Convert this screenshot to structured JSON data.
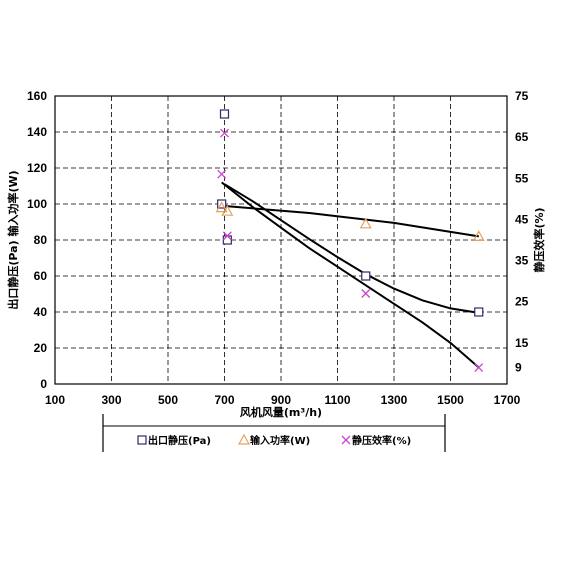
{
  "chart_data": {
    "type": "scatter",
    "xlabel": "风机风量(m³/h)",
    "ylabel_left": "出口静压(Pa) 输入功率(W)",
    "ylabel_right": "静压效率(%)",
    "x_ticks": [
      100,
      300,
      500,
      700,
      900,
      1100,
      1300,
      1500,
      1700
    ],
    "y_left_ticks": [
      0,
      20,
      40,
      60,
      80,
      100,
      120,
      140,
      160
    ],
    "y_right_ticks": [
      9,
      15,
      25,
      35,
      45,
      55,
      65,
      75
    ],
    "xlim": [
      100,
      1700
    ],
    "ylim_left": [
      0,
      160
    ],
    "ylim_right": [
      5,
      75
    ],
    "grid": true,
    "legend_position": "bottom",
    "series": [
      {
        "name": "出口静压(Pa)",
        "axis": "left",
        "marker": "square",
        "color": "#2b2b6b",
        "points": [
          [
            700,
            150
          ],
          [
            690,
            100
          ],
          [
            710,
            80
          ],
          [
            1200,
            60
          ],
          [
            1600,
            40
          ]
        ],
        "trend": [
          [
            700,
            111
          ],
          [
            800,
            101.5
          ],
          [
            900,
            91
          ],
          [
            1000,
            80.5
          ],
          [
            1100,
            70.5
          ],
          [
            1200,
            61
          ],
          [
            1300,
            53
          ],
          [
            1400,
            46.5
          ],
          [
            1500,
            42
          ],
          [
            1600,
            39.5
          ]
        ]
      },
      {
        "name": "输入功率(W)",
        "axis": "left",
        "marker": "triangle",
        "color": "#e8a060",
        "points": [
          [
            690,
            98
          ],
          [
            710,
            96
          ],
          [
            1200,
            89
          ],
          [
            1600,
            82
          ]
        ],
        "trend": [
          [
            690,
            99
          ],
          [
            1000,
            95
          ],
          [
            1300,
            89.5
          ],
          [
            1600,
            82
          ]
        ]
      },
      {
        "name": "静压效率(%)",
        "axis": "right",
        "marker": "x",
        "color": "#cc44cc",
        "points": [
          [
            700,
            66
          ],
          [
            690,
            56
          ],
          [
            710,
            41
          ],
          [
            1200,
            27
          ],
          [
            1600,
            9
          ]
        ],
        "trend": [
          [
            690,
            54
          ],
          [
            800,
            48
          ],
          [
            900,
            43
          ],
          [
            1000,
            38
          ],
          [
            1100,
            33.5
          ],
          [
            1200,
            29
          ],
          [
            1300,
            24.5
          ],
          [
            1400,
            20
          ],
          [
            1500,
            15
          ],
          [
            1600,
            9
          ]
        ]
      }
    ]
  }
}
